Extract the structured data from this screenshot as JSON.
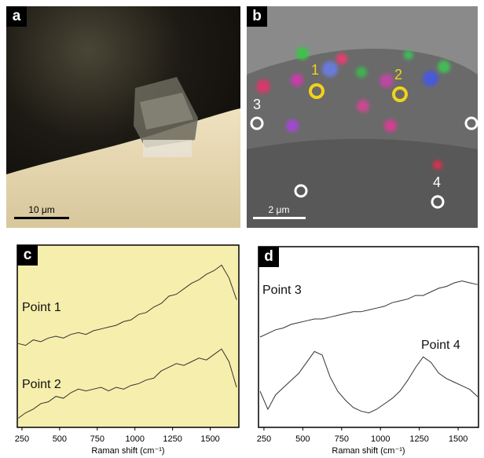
{
  "panels": {
    "a": {
      "label": "a",
      "scale_bar": "10 μm"
    },
    "b": {
      "label": "b",
      "scale_bar": "2 μm",
      "points": [
        "1",
        "2",
        "3",
        "4"
      ]
    }
  },
  "chart_data": [
    {
      "type": "line",
      "label": "c",
      "xlabel": "Raman shift (cm⁻¹)",
      "background": "#f6eeac",
      "xlim": [
        219,
        1690
      ],
      "ylim": [
        0,
        100
      ],
      "xticks": [
        250,
        500,
        750,
        1000,
        1250,
        1500
      ],
      "x": [
        225,
        275,
        325,
        375,
        425,
        475,
        525,
        575,
        625,
        675,
        725,
        775,
        825,
        875,
        925,
        975,
        1025,
        1075,
        1125,
        1175,
        1225,
        1275,
        1325,
        1375,
        1425,
        1475,
        1525,
        1575,
        1625,
        1675
      ],
      "series": [
        {
          "name": "Point 1",
          "color": "#333333",
          "values": [
            46,
            45,
            48,
            47,
            49,
            50,
            49,
            51,
            52,
            51,
            53,
            54,
            55,
            56,
            58,
            59,
            62,
            63,
            66,
            68,
            72,
            73,
            76,
            79,
            81,
            84,
            86,
            89,
            82,
            70
          ]
        },
        {
          "name": "Point 2",
          "color": "#333333",
          "values": [
            5,
            8,
            10,
            13,
            14,
            17,
            16,
            19,
            21,
            20,
            21,
            22,
            20,
            22,
            21,
            23,
            24,
            26,
            27,
            31,
            33,
            35,
            34,
            36,
            38,
            37,
            40,
            43,
            36,
            22
          ]
        }
      ]
    },
    {
      "type": "line",
      "label": "d",
      "xlabel": "Raman shift (cm⁻¹)",
      "background": "#ffffff",
      "xlim": [
        215,
        1631
      ],
      "ylim": [
        0,
        100
      ],
      "xticks": [
        250,
        500,
        750,
        1000,
        1250,
        1500
      ],
      "x": [
        225,
        275,
        325,
        375,
        425,
        475,
        525,
        575,
        625,
        675,
        725,
        775,
        825,
        875,
        925,
        975,
        1025,
        1075,
        1125,
        1175,
        1225,
        1275,
        1325,
        1375,
        1425,
        1475,
        1525,
        1575,
        1625
      ],
      "series": [
        {
          "name": "Point 3",
          "color": "#333333",
          "values": [
            50,
            52,
            54,
            55,
            57,
            58,
            59,
            60,
            60,
            61,
            62,
            63,
            64,
            64,
            65,
            66,
            67,
            69,
            70,
            71,
            73,
            73,
            75,
            77,
            78,
            80,
            81,
            80,
            79
          ]
        },
        {
          "name": "Point 4",
          "color": "#333333",
          "values": [
            20,
            10,
            18,
            22,
            26,
            30,
            36,
            42,
            40,
            28,
            20,
            15,
            11,
            9,
            8,
            10,
            13,
            16,
            20,
            26,
            33,
            39,
            36,
            30,
            27,
            25,
            23,
            21,
            17
          ]
        }
      ]
    }
  ]
}
